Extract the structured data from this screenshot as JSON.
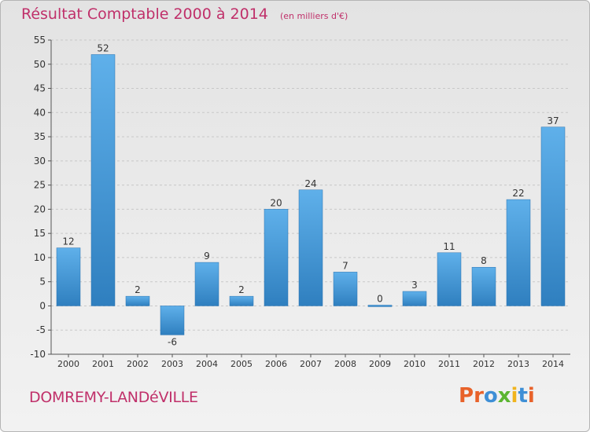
{
  "header": {
    "title": "Résultat Comptable 2000 à 2014",
    "subtitle": "(en milliers d'€)"
  },
  "footer": {
    "commune": "DOMREMY-LANDéVILLE",
    "logo_text": "Proxiti",
    "logo_letters": [
      {
        "ch": "P",
        "color": "#e8622a"
      },
      {
        "ch": "r",
        "color": "#e8622a"
      },
      {
        "ch": "o",
        "color": "#3e8fd6"
      },
      {
        "ch": "x",
        "color": "#5cb531"
      },
      {
        "ch": "i",
        "color": "#f0b41e"
      },
      {
        "ch": "t",
        "color": "#3e8fd6"
      },
      {
        "ch": "i",
        "color": "#e8622a"
      }
    ]
  },
  "chart_data": {
    "type": "bar",
    "title": "Résultat Comptable 2000 à 2014",
    "subtitle": "(en milliers d'€)",
    "categories": [
      "2000",
      "2001",
      "2002",
      "2003",
      "2004",
      "2005",
      "2006",
      "2007",
      "2008",
      "2009",
      "2010",
      "2011",
      "2012",
      "2013",
      "2014"
    ],
    "values": [
      12,
      52,
      2,
      -6,
      9,
      2,
      20,
      24,
      7,
      0,
      3,
      11,
      8,
      22,
      37
    ],
    "ylim": [
      -10,
      55
    ],
    "yticks": [
      -10,
      -5,
      0,
      5,
      10,
      15,
      20,
      25,
      30,
      35,
      40,
      45,
      50,
      55
    ],
    "grid": true,
    "legend": "none",
    "colors": {
      "bar_light": "#5fb0ea",
      "bar_dark": "#2f7fbf",
      "text": "#333333",
      "axis": "#555555",
      "grid": "#c8c8c8"
    }
  }
}
